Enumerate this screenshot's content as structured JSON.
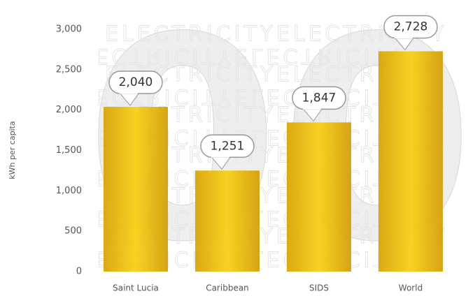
{
  "chart_data": {
    "type": "bar",
    "y_label": "kWh per capita",
    "background_text": "ELECTRICITY",
    "background_year": "2009",
    "categories": [
      "Saint Lucia",
      "Caribbean",
      "SIDS",
      "World"
    ],
    "values": [
      2040,
      1251,
      1847,
      2728
    ],
    "value_labels": [
      "2,040",
      "1,251",
      "1,847",
      "2,728"
    ],
    "ylim": [
      0,
      3000
    ],
    "yticks": [
      0,
      500,
      {
        "value": 1000,
        "label": "1,000"
      },
      {
        "value": 1500,
        "label": "1,500"
      },
      {
        "value": 2000,
        "label": "2,000"
      },
      {
        "value": 2500,
        "label": "2,500"
      },
      {
        "value": 3000,
        "label": "3,000"
      }
    ],
    "grid": false
  }
}
